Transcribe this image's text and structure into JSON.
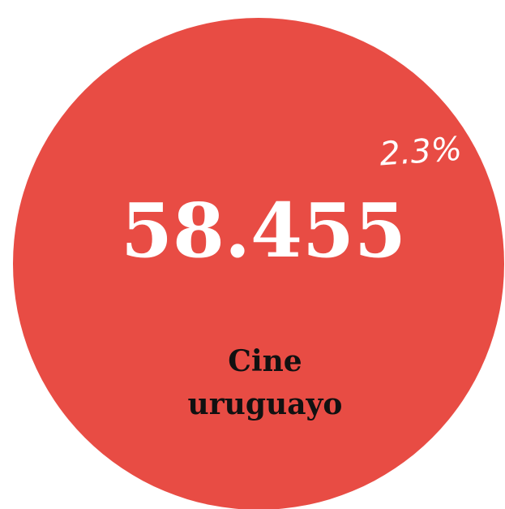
{
  "bubble": {
    "value": "58.455",
    "percent": "2.3%",
    "label": [
      "Cine",
      "uruguayo"
    ]
  }
}
